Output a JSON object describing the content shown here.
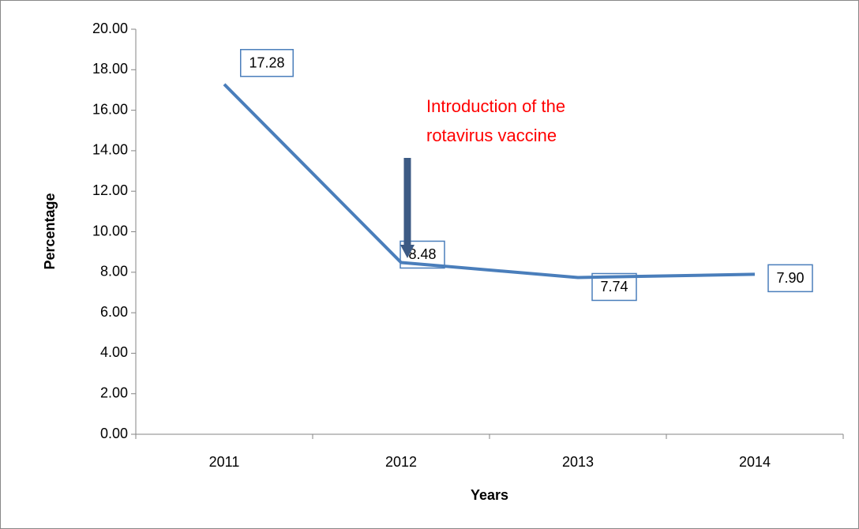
{
  "chart_data": {
    "type": "line",
    "x_label": "Years",
    "y_label": "Percentage",
    "categories": [
      "2011",
      "2012",
      "2013",
      "2014"
    ],
    "values": [
      17.28,
      8.48,
      7.74,
      7.9
    ],
    "value_labels": [
      "17.28",
      "8.48",
      "7.74",
      "7.90"
    ],
    "color": "#4a7ebb",
    "ylim": [
      0,
      20
    ],
    "yticks": [
      {
        "value": 0,
        "label": "0.00"
      },
      {
        "value": 2,
        "label": "2.00"
      },
      {
        "value": 4,
        "label": "4.00"
      },
      {
        "value": 6,
        "label": "6.00"
      },
      {
        "value": 8,
        "label": "8.00"
      },
      {
        "value": 10,
        "label": "10.00"
      },
      {
        "value": 12,
        "label": "12.00"
      },
      {
        "value": 14,
        "label": "14.00"
      },
      {
        "value": 16,
        "label": "16.00"
      },
      {
        "value": 18,
        "label": "18.00"
      },
      {
        "value": 20,
        "label": "20.00"
      }
    ],
    "annotation": {
      "lines": [
        "Introduction of the",
        "rotavirus  vaccine"
      ],
      "color": "#ff0000"
    }
  }
}
